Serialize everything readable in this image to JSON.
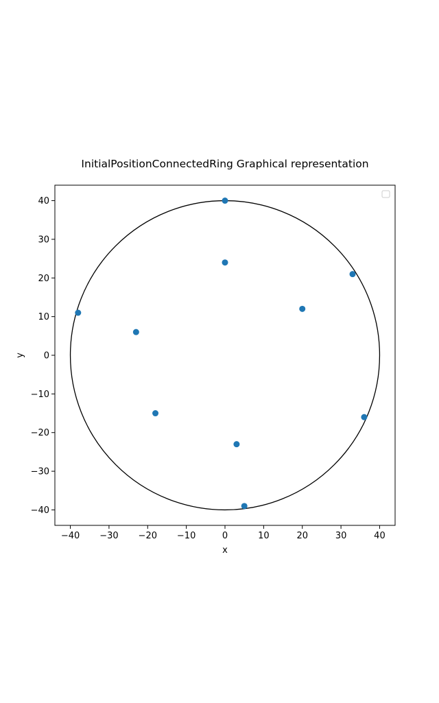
{
  "chart_data": {
    "type": "scatter",
    "title": "InitialPositionConnectedRing Graphical representation",
    "xlabel": "x",
    "ylabel": "y",
    "xlim": [
      -44,
      44
    ],
    "ylim": [
      -44,
      44
    ],
    "xticks": [
      -40,
      -30,
      -20,
      -10,
      0,
      10,
      20,
      30,
      40
    ],
    "yticks": [
      -40,
      -30,
      -20,
      -10,
      0,
      10,
      20,
      30,
      40
    ],
    "grid": false,
    "legend": {
      "placement": "top-right",
      "entries": []
    },
    "circle": {
      "center": [
        0,
        0
      ],
      "radius": 40,
      "color": "#000000"
    },
    "series": [
      {
        "color": "#1f77b4",
        "points": [
          [
            0,
            40
          ],
          [
            0,
            24
          ],
          [
            33,
            21
          ],
          [
            20,
            12
          ],
          [
            -38,
            11
          ],
          [
            -23,
            6
          ],
          [
            -18,
            -15
          ],
          [
            36,
            -16
          ],
          [
            3,
            -23
          ],
          [
            5,
            -39
          ]
        ]
      }
    ]
  }
}
